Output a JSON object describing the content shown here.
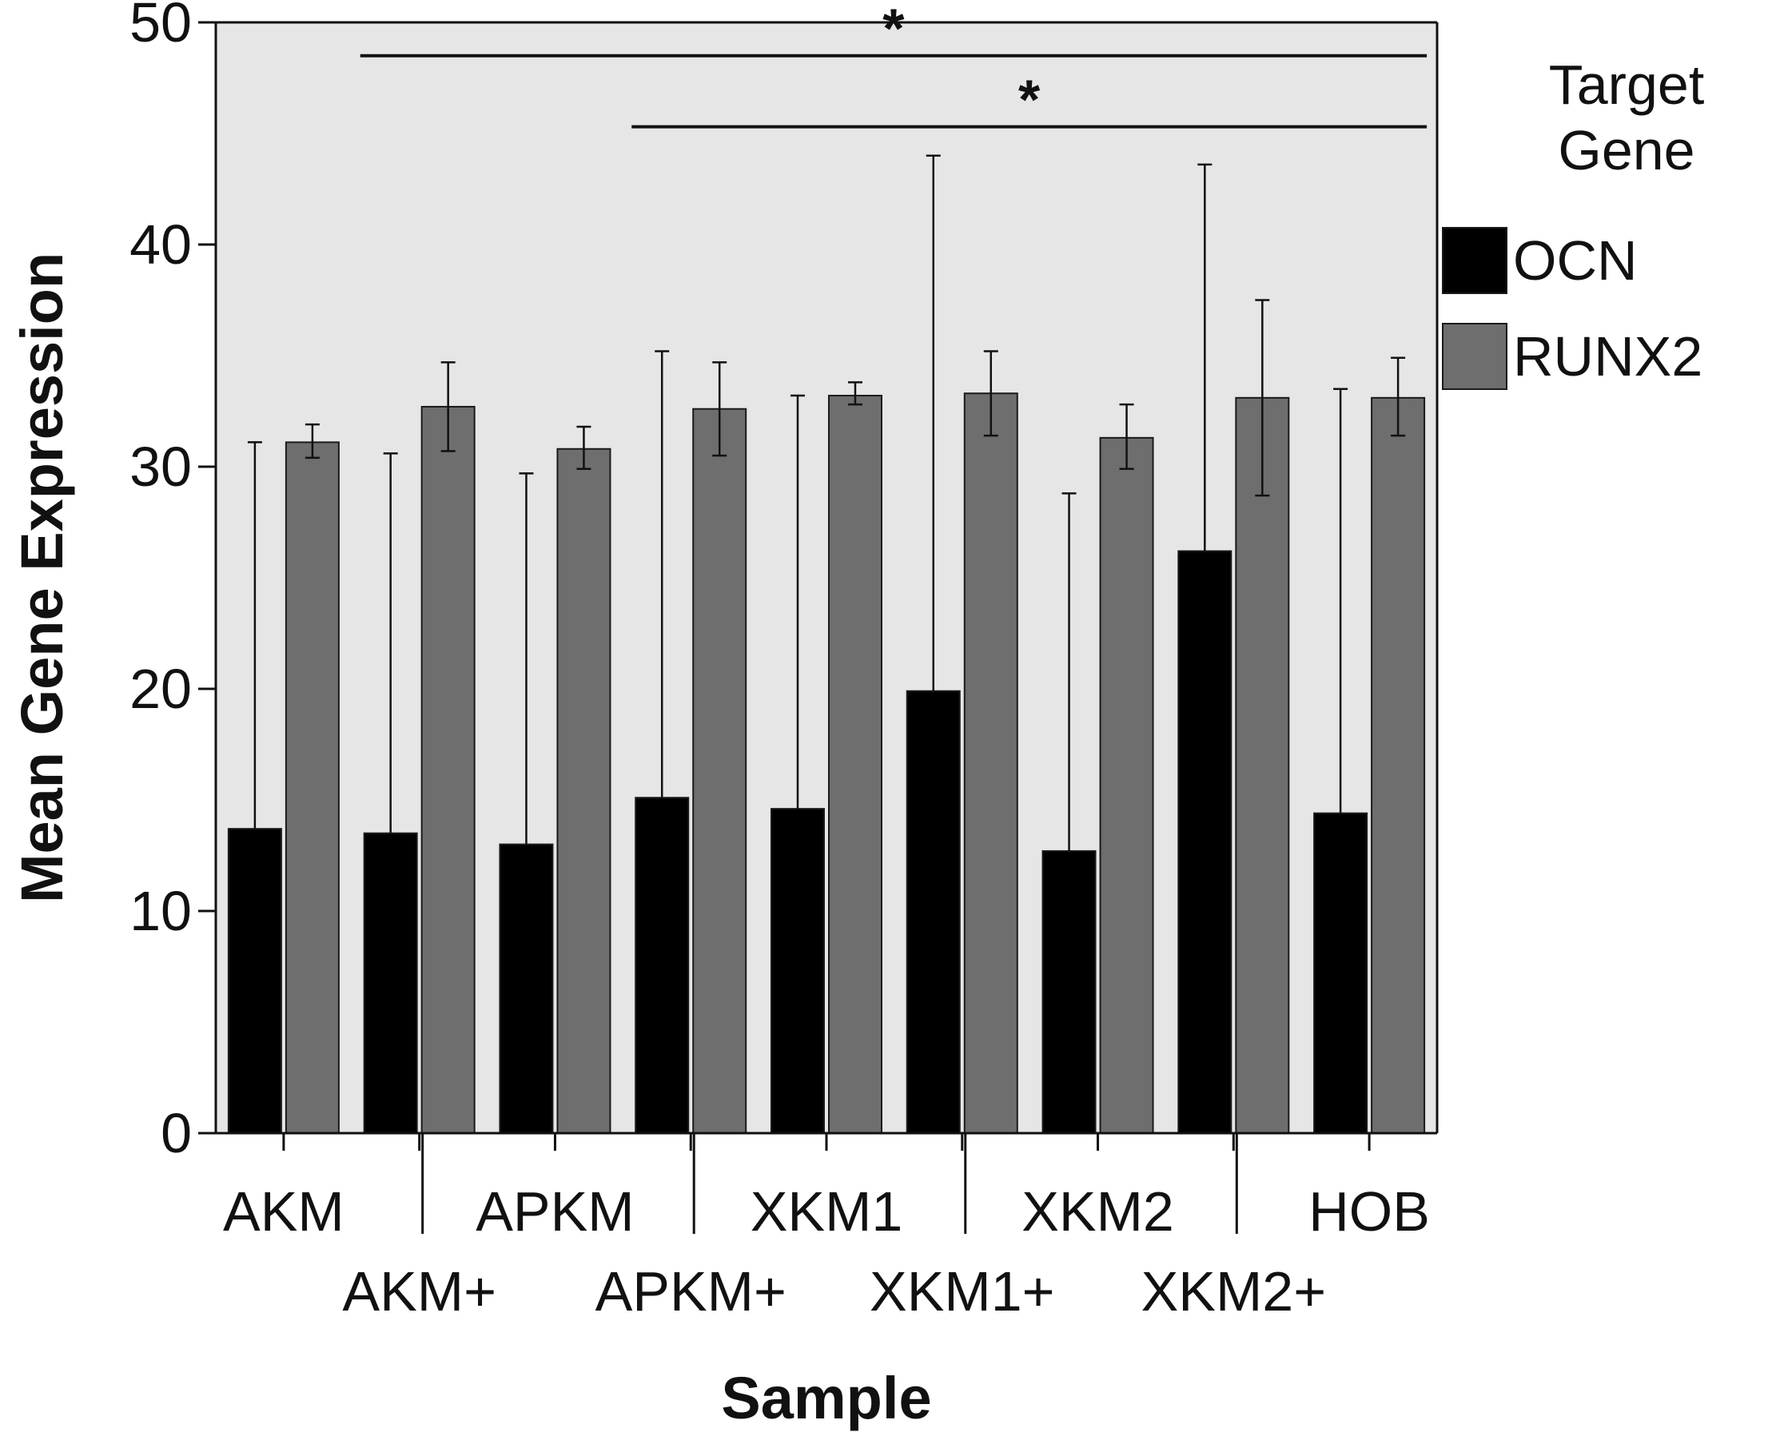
{
  "chart_data": {
    "type": "bar",
    "xlabel": "Sample",
    "ylabel": "Mean Gene Expression",
    "ylim": [
      0,
      50
    ],
    "yticks": [
      0,
      10,
      20,
      30,
      40,
      50
    ],
    "grid": false,
    "background_color": "#e6e6e6",
    "legend": {
      "title_lines": [
        "Target",
        "Gene"
      ],
      "placement": "right"
    },
    "categories": [
      "AKM",
      "AKM+",
      "APKM",
      "APKM+",
      "XKM1",
      "XKM1+",
      "XKM2",
      "XKM2+",
      "HOB"
    ],
    "series": [
      {
        "name": "OCN",
        "color": "#000000",
        "values": [
          13.7,
          13.5,
          13.0,
          15.1,
          14.6,
          19.9,
          12.7,
          26.2,
          14.4
        ],
        "error_upper": [
          31.1,
          30.6,
          29.7,
          35.2,
          33.2,
          44.0,
          28.8,
          43.6,
          33.5
        ]
      },
      {
        "name": "RUNX2",
        "color": "#6e6e6e",
        "values": [
          31.1,
          32.7,
          30.8,
          32.6,
          33.2,
          33.3,
          31.3,
          33.1,
          33.1
        ],
        "error_lower": [
          30.4,
          30.7,
          29.9,
          30.5,
          32.8,
          31.4,
          29.9,
          28.7,
          31.4
        ],
        "error_upper": [
          31.9,
          34.7,
          31.8,
          34.7,
          33.8,
          35.2,
          32.8,
          37.5,
          34.9
        ]
      }
    ],
    "significance": [
      {
        "label": "*",
        "from_category": "AKM+",
        "to_category": "HOB",
        "y": 48.5
      },
      {
        "label": "*",
        "from_category": "APKM+",
        "to_category": "HOB",
        "y": 45.3
      }
    ]
  }
}
